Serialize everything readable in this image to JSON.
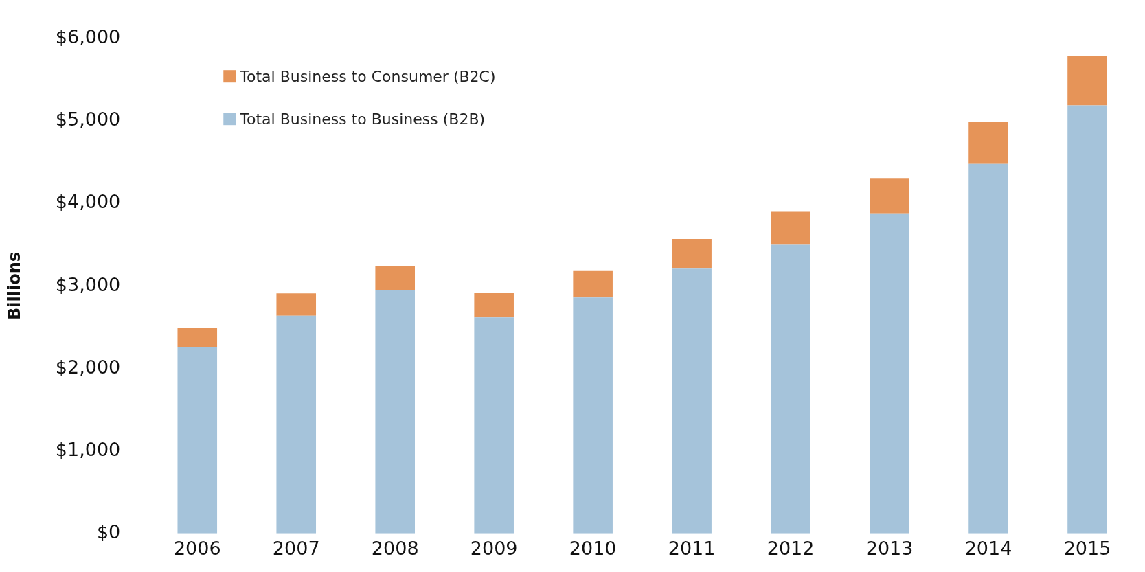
{
  "chart_data": {
    "type": "bar",
    "ylabel": "Billions",
    "stacked": true,
    "legend": "top left",
    "grid": false,
    "categories": [
      "2006",
      "2007",
      "2008",
      "2009",
      "2010",
      "2011",
      "2012",
      "2013",
      "2014",
      "2015"
    ],
    "series": [
      {
        "name": "Total Business to Business (B2B)",
        "color": "#a5c3da",
        "values": [
          2260,
          2640,
          2950,
          2620,
          2860,
          3210,
          3500,
          3880,
          4480,
          5190
        ]
      },
      {
        "name": "Total Business to Consumer (B2C)",
        "color": "#e69458",
        "values": [
          230,
          270,
          290,
          300,
          330,
          360,
          400,
          430,
          510,
          600
        ]
      }
    ],
    "ylim": [
      0,
      6000
    ],
    "yticks": [
      {
        "value": 0,
        "label": "$0"
      },
      {
        "value": 1000,
        "label": "$1,000"
      },
      {
        "value": 2000,
        "label": "$2,000"
      },
      {
        "value": 3000,
        "label": "$3,000"
      },
      {
        "value": 4000,
        "label": "$4,000"
      },
      {
        "value": 5000,
        "label": "$5,000"
      },
      {
        "value": 6000,
        "label": "$6,000"
      }
    ]
  }
}
